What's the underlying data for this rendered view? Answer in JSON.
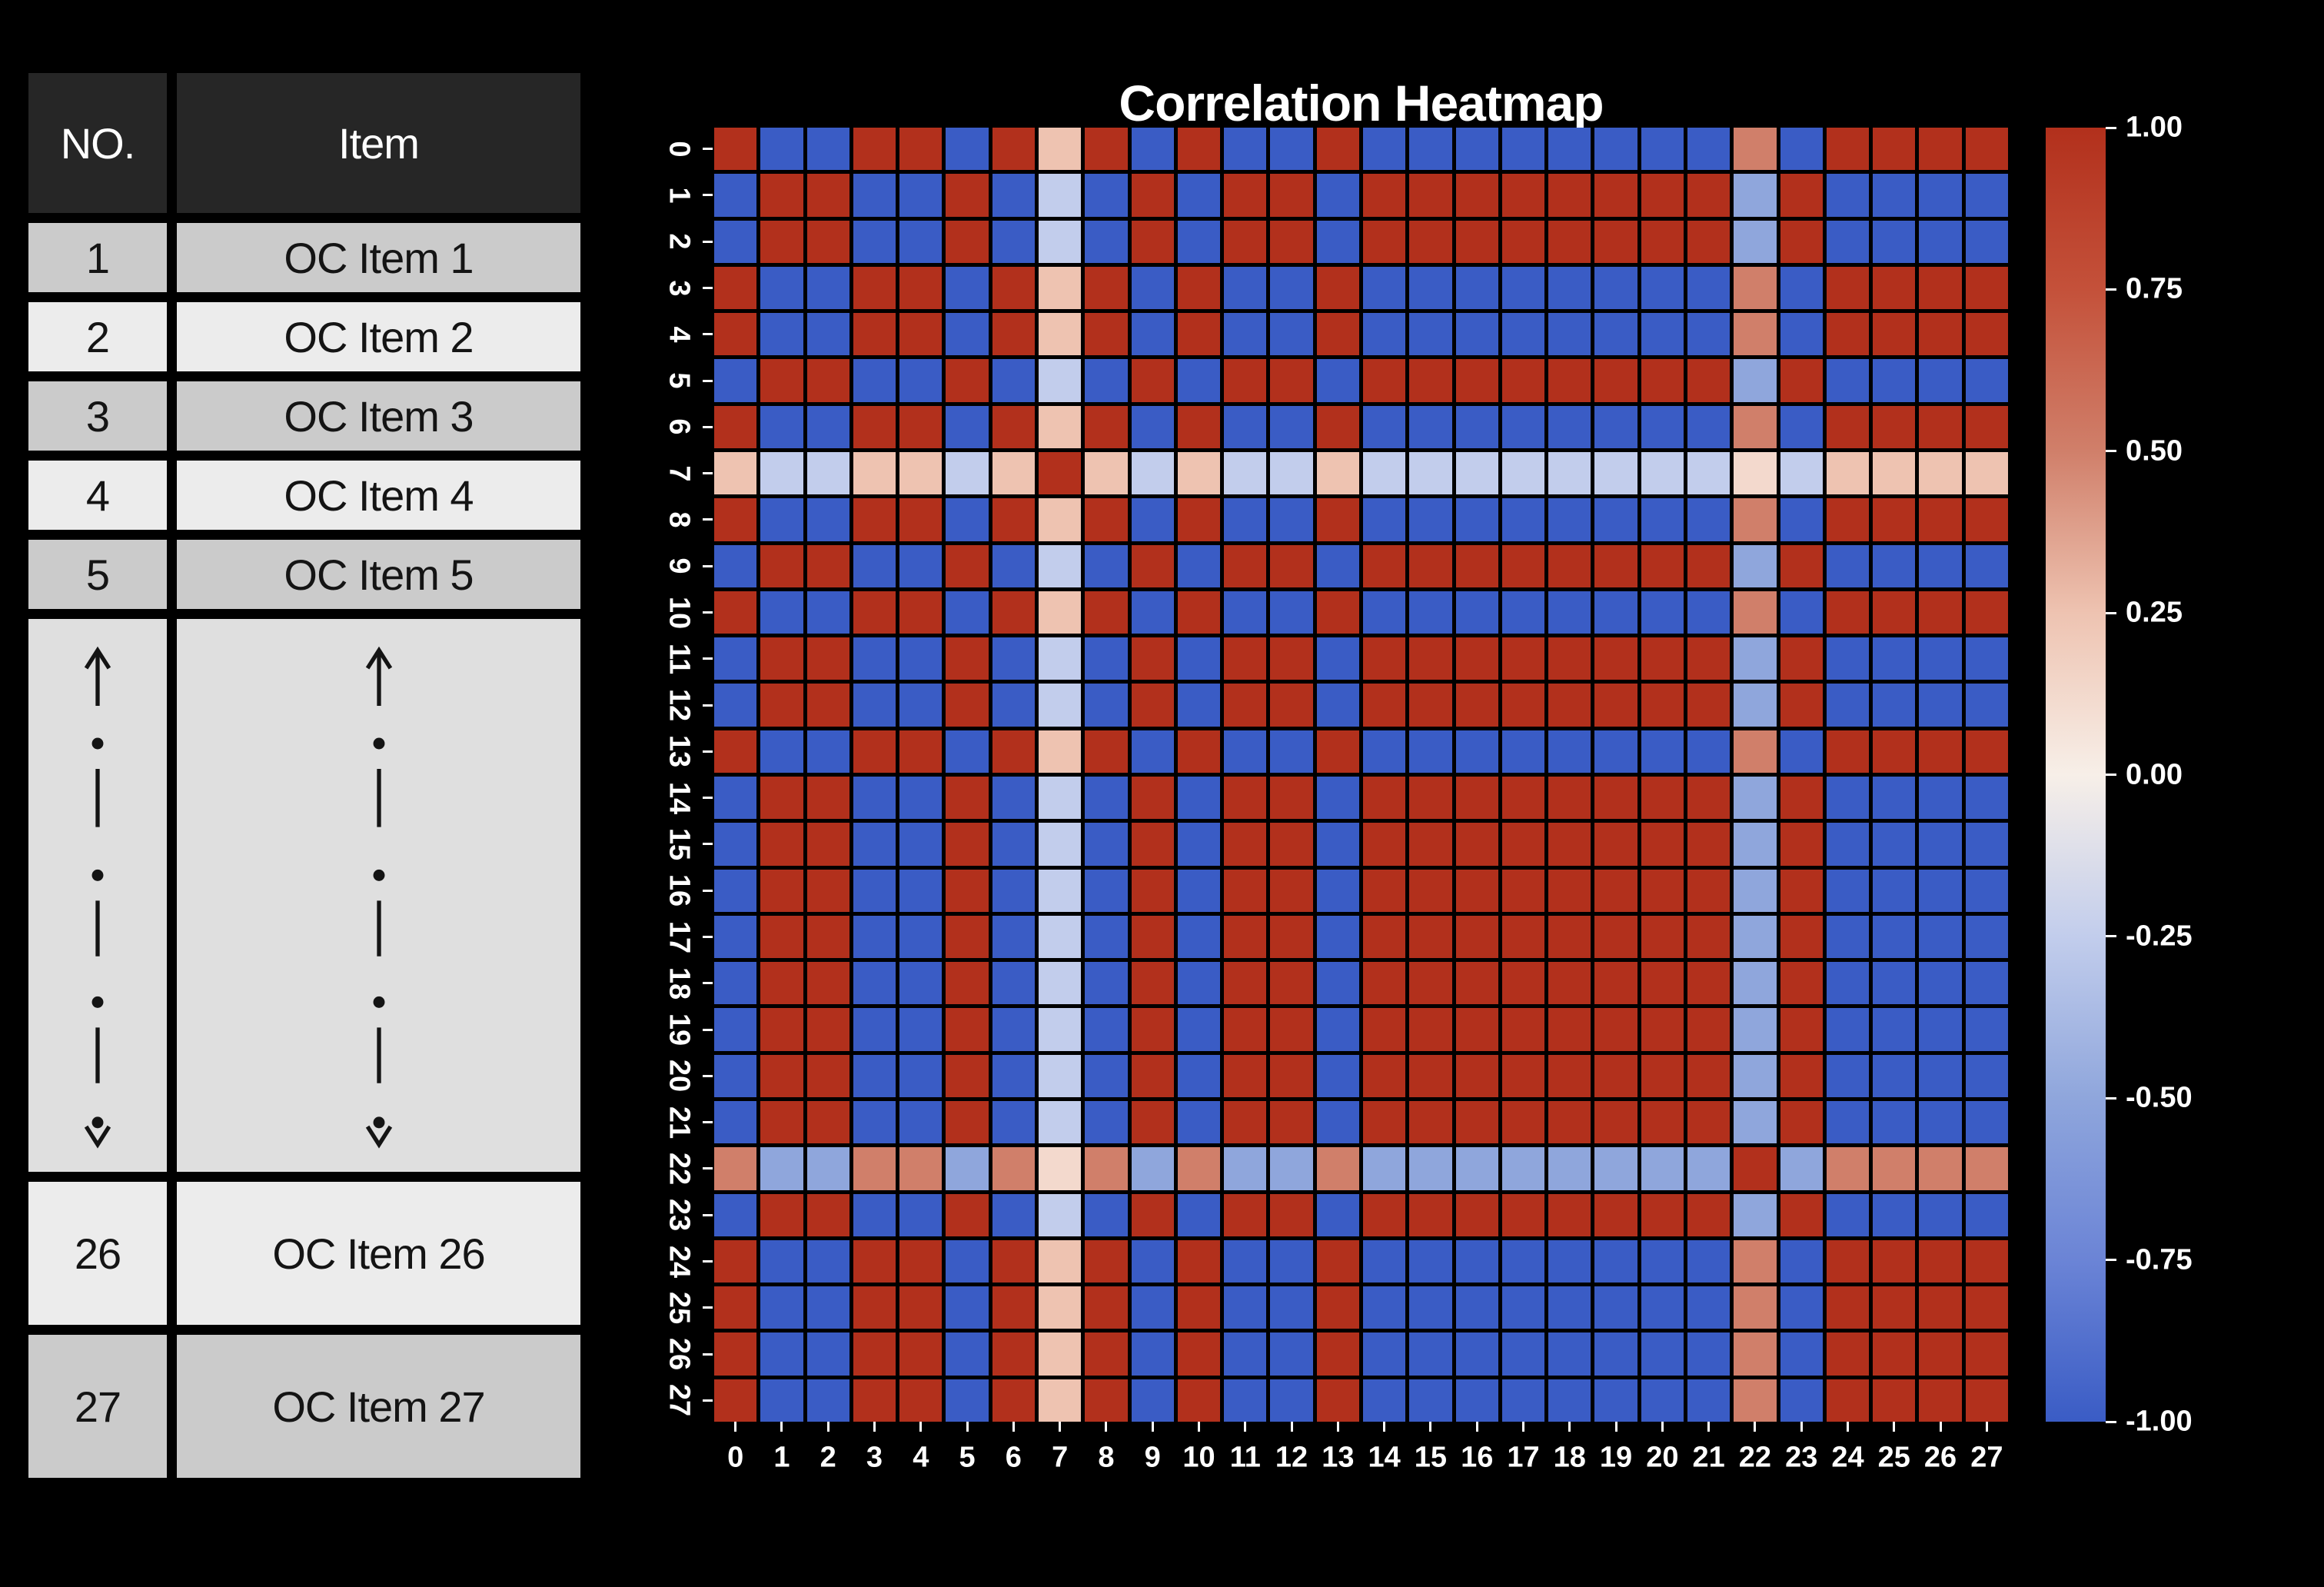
{
  "colors": {
    "bg": "#000000",
    "headerbg": "#262626",
    "headertext": "#ffffff",
    "rowdark": "#cbcbcb",
    "rowlight": "#ececec",
    "rowdots": "#dfdfdf",
    "tabletext": "#141414",
    "axis_text": "#ffffff"
  },
  "table": {
    "headers": [
      "NO.",
      "Item"
    ],
    "rows_top": [
      {
        "no": "1",
        "item": "OC Item 1"
      },
      {
        "no": "2",
        "item": "OC Item 2"
      },
      {
        "no": "3",
        "item": "OC Item 3"
      },
      {
        "no": "4",
        "item": "OC Item 4"
      },
      {
        "no": "5",
        "item": "OC Item 5"
      }
    ],
    "rows_bottom": [
      {
        "no": "26",
        "item": "OC Item 26"
      },
      {
        "no": "27",
        "item": "OC Item 27"
      }
    ]
  },
  "chart_data": {
    "type": "heatmap",
    "title": "Correlation Heatmap",
    "n": 28,
    "x_labels": [
      "0",
      "1",
      "2",
      "3",
      "4",
      "5",
      "6",
      "7",
      "8",
      "9",
      "10",
      "11",
      "12",
      "13",
      "14",
      "15",
      "16",
      "17",
      "18",
      "19",
      "20",
      "21",
      "22",
      "23",
      "24",
      "25",
      "26",
      "27"
    ],
    "y_labels": [
      "0",
      "1",
      "2",
      "3",
      "4",
      "5",
      "6",
      "7",
      "8",
      "9",
      "10",
      "11",
      "12",
      "13",
      "14",
      "15",
      "16",
      "17",
      "18",
      "19",
      "20",
      "21",
      "22",
      "23",
      "24",
      "25",
      "26",
      "27"
    ],
    "value_vector": [
      1,
      -1,
      -1,
      1,
      1,
      -1,
      1,
      0.25,
      1,
      -1,
      1,
      -1,
      -1,
      1,
      -1,
      -1,
      -1,
      -1,
      -1,
      -1,
      -1,
      -1,
      0.5,
      -1,
      1,
      1,
      1,
      1
    ],
    "matrix_rule": "corr[i][j] = value_vector[i] * value_vector[j] for i != j; corr[i][i] = 1.0",
    "vmin": -1.0,
    "vmax": 1.0,
    "grid_gap_color": "#000000",
    "colorbar_ticks": [
      "1.00",
      "0.75",
      "0.50",
      "0.25",
      "0.00",
      "-0.25",
      "-0.50",
      "-0.75",
      "-1.00"
    ],
    "colorbar_tick_values": [
      1.0,
      0.75,
      0.5,
      0.25,
      0.0,
      -0.25,
      -0.5,
      -0.75,
      -1.0
    ],
    "colormap": [
      {
        "t": -1.0,
        "c": "#3a5cc5"
      },
      {
        "t": -0.75,
        "c": "#6b84d6"
      },
      {
        "t": -0.5,
        "c": "#8fa6dc"
      },
      {
        "t": -0.25,
        "c": "#c2cdec"
      },
      {
        "t": 0.0,
        "c": "#f7efe8"
      },
      {
        "t": 0.25,
        "c": "#eec3b1"
      },
      {
        "t": 0.5,
        "c": "#d07f6a"
      },
      {
        "t": 0.75,
        "c": "#c4513a"
      },
      {
        "t": 1.0,
        "c": "#b2301c"
      }
    ],
    "legend_position": "right-colorbar"
  }
}
